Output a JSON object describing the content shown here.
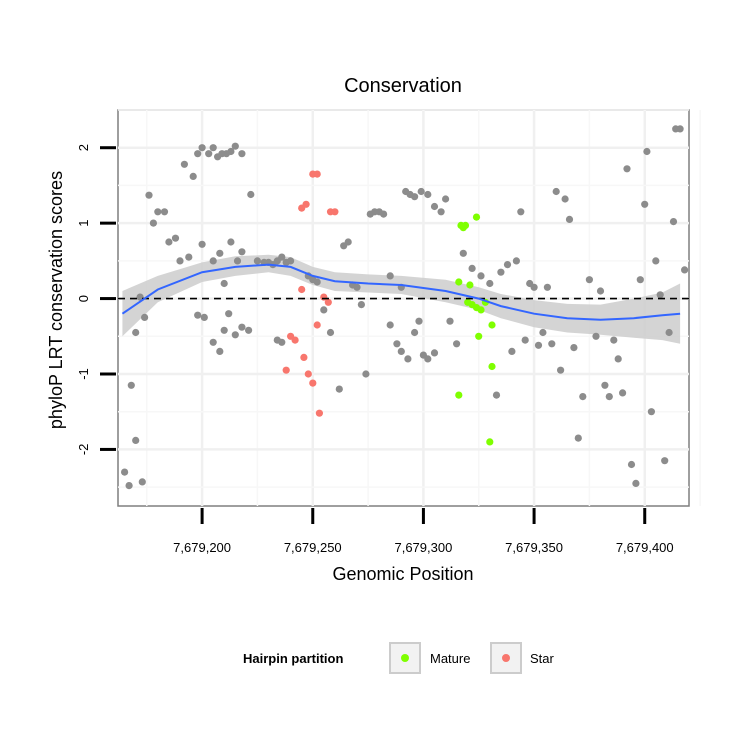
{
  "chart_data": {
    "type": "scatter",
    "title": "Conservation",
    "xlabel": "Genomic Position",
    "ylabel": "phyloP LRT conservation scores",
    "xlim": [
      7679162,
      7679420
    ],
    "ylim": [
      -2.75,
      2.5
    ],
    "x_ticks": [
      7679200,
      7679250,
      7679300,
      7679350,
      7679400
    ],
    "x_tick_labels": [
      "7,679,200",
      "7,679,250",
      "7,679,300",
      "7,679,350",
      "7,679,400"
    ],
    "y_ticks": [
      -2,
      -1,
      0,
      1,
      2
    ],
    "y_tick_labels": [
      "-2",
      "-1",
      "0",
      "1",
      "2"
    ],
    "grid": true,
    "reference_line": {
      "y": 0,
      "style": "dashed",
      "color": "#000000"
    },
    "legend": {
      "title": "Hairpin partition",
      "placement": "bottom",
      "entries": [
        {
          "label": "Mature",
          "color": "#7fff00"
        },
        {
          "label": "Star",
          "color": "#f8766d"
        }
      ]
    },
    "colors": {
      "other": "#8c8c8c",
      "mature": "#7fff00",
      "star": "#f8766d",
      "smooth": "#3366ff",
      "ribbon": "#cccccc"
    },
    "series": [
      {
        "group": "other",
        "points": [
          [
            7679165,
            -2.3
          ],
          [
            7679167,
            -2.48
          ],
          [
            7679170,
            -1.88
          ],
          [
            7679173,
            -2.43
          ],
          [
            7679168,
            -1.15
          ],
          [
            7679170,
            -0.45
          ],
          [
            7679172,
            0.02
          ],
          [
            7679174,
            -0.25
          ],
          [
            7679176,
            1.37
          ],
          [
            7679178,
            1.0
          ],
          [
            7679180,
            1.15
          ],
          [
            7679183,
            1.15
          ],
          [
            7679185,
            0.75
          ],
          [
            7679188,
            0.8
          ],
          [
            7679190,
            0.5
          ],
          [
            7679192,
            1.78
          ],
          [
            7679194,
            0.55
          ],
          [
            7679196,
            1.62
          ],
          [
            7679198,
            1.92
          ],
          [
            7679200,
            2.0
          ],
          [
            7679203,
            1.92
          ],
          [
            7679205,
            2.0
          ],
          [
            7679207,
            1.88
          ],
          [
            7679209,
            1.92
          ],
          [
            7679211,
            1.92
          ],
          [
            7679213,
            1.95
          ],
          [
            7679215,
            2.02
          ],
          [
            7679218,
            1.92
          ],
          [
            7679200,
            0.72
          ],
          [
            7679205,
            0.5
          ],
          [
            7679208,
            0.6
          ],
          [
            7679210,
            0.2
          ],
          [
            7679213,
            0.75
          ],
          [
            7679216,
            0.5
          ],
          [
            7679218,
            0.62
          ],
          [
            7679198,
            -0.22
          ],
          [
            7679201,
            -0.25
          ],
          [
            7679205,
            -0.58
          ],
          [
            7679208,
            -0.7
          ],
          [
            7679210,
            -0.42
          ],
          [
            7679212,
            -0.2
          ],
          [
            7679215,
            -0.48
          ],
          [
            7679218,
            -0.38
          ],
          [
            7679221,
            -0.42
          ],
          [
            7679222,
            1.38
          ],
          [
            7679225,
            0.5
          ],
          [
            7679228,
            0.48
          ],
          [
            7679230,
            0.48
          ],
          [
            7679232,
            0.45
          ],
          [
            7679234,
            0.5
          ],
          [
            7679236,
            0.55
          ],
          [
            7679238,
            0.48
          ],
          [
            7679240,
            0.5
          ],
          [
            7679234,
            -0.55
          ],
          [
            7679236,
            -0.58
          ],
          [
            7679248,
            0.3
          ],
          [
            7679250,
            0.25
          ],
          [
            7679252,
            0.22
          ],
          [
            7679255,
            -0.15
          ],
          [
            7679258,
            -0.45
          ],
          [
            7679262,
            -1.2
          ],
          [
            7679264,
            0.7
          ],
          [
            7679266,
            0.75
          ],
          [
            7679268,
            0.18
          ],
          [
            7679270,
            0.15
          ],
          [
            7679272,
            -0.08
          ],
          [
            7679274,
            -1.0
          ],
          [
            7679276,
            1.12
          ],
          [
            7679278,
            1.15
          ],
          [
            7679280,
            1.15
          ],
          [
            7679282,
            1.12
          ],
          [
            7679285,
            0.3
          ],
          [
            7679285,
            -0.35
          ],
          [
            7679290,
            0.15
          ],
          [
            7679292,
            1.42
          ],
          [
            7679294,
            1.38
          ],
          [
            7679296,
            1.35
          ],
          [
            7679299,
            1.42
          ],
          [
            7679288,
            -0.6
          ],
          [
            7679290,
            -0.7
          ],
          [
            7679293,
            -0.8
          ],
          [
            7679296,
            -0.45
          ],
          [
            7679298,
            -0.3
          ],
          [
            7679300,
            -0.75
          ],
          [
            7679302,
            -0.8
          ],
          [
            7679305,
            -0.72
          ],
          [
            7679302,
            1.38
          ],
          [
            7679305,
            1.22
          ],
          [
            7679308,
            1.15
          ],
          [
            7679310,
            1.32
          ],
          [
            7679312,
            -0.3
          ],
          [
            7679315,
            -0.6
          ],
          [
            7679318,
            0.6
          ],
          [
            7679322,
            0.4
          ],
          [
            7679326,
            0.3
          ],
          [
            7679330,
            0.2
          ],
          [
            7679333,
            -1.28
          ],
          [
            7679335,
            0.35
          ],
          [
            7679338,
            0.45
          ],
          [
            7679340,
            -0.7
          ],
          [
            7679342,
            0.5
          ],
          [
            7679344,
            1.15
          ],
          [
            7679346,
            -0.55
          ],
          [
            7679348,
            0.2
          ],
          [
            7679350,
            0.15
          ],
          [
            7679352,
            -0.62
          ],
          [
            7679354,
            -0.45
          ],
          [
            7679356,
            0.15
          ],
          [
            7679358,
            -0.6
          ],
          [
            7679360,
            1.42
          ],
          [
            7679362,
            -0.95
          ],
          [
            7679364,
            1.32
          ],
          [
            7679366,
            1.05
          ],
          [
            7679368,
            -0.65
          ],
          [
            7679370,
            -1.85
          ],
          [
            7679372,
            -1.3
          ],
          [
            7679375,
            0.25
          ],
          [
            7679378,
            -0.5
          ],
          [
            7679380,
            0.1
          ],
          [
            7679382,
            -1.15
          ],
          [
            7679384,
            -1.3
          ],
          [
            7679386,
            -0.55
          ],
          [
            7679388,
            -0.8
          ],
          [
            7679390,
            -1.25
          ],
          [
            7679392,
            1.72
          ],
          [
            7679394,
            -2.2
          ],
          [
            7679396,
            -2.45
          ],
          [
            7679398,
            0.25
          ],
          [
            7679400,
            1.25
          ],
          [
            7679401,
            1.95
          ],
          [
            7679403,
            -1.5
          ],
          [
            7679405,
            0.5
          ],
          [
            7679407,
            0.05
          ],
          [
            7679409,
            -2.15
          ],
          [
            7679411,
            -0.45
          ],
          [
            7679413,
            1.02
          ],
          [
            7679414,
            2.25
          ],
          [
            7679416,
            2.25
          ],
          [
            7679418,
            0.38
          ]
        ]
      },
      {
        "group": "mature",
        "points": [
          [
            7679316,
            0.22
          ],
          [
            7679317,
            0.97
          ],
          [
            7679318,
            0.94
          ],
          [
            7679319,
            0.97
          ],
          [
            7679321,
            0.18
          ],
          [
            7679324,
            1.08
          ],
          [
            7679320,
            -0.05
          ],
          [
            7679322,
            -0.08
          ],
          [
            7679324,
            -0.12
          ],
          [
            7679326,
            -0.15
          ],
          [
            7679328,
            -0.05
          ],
          [
            7679325,
            -0.5
          ],
          [
            7679331,
            -0.35
          ],
          [
            7679316,
            -1.28
          ],
          [
            7679331,
            -0.9
          ],
          [
            7679330,
            -1.9
          ]
        ]
      },
      {
        "group": "star",
        "points": [
          [
            7679250,
            1.65
          ],
          [
            7679252,
            1.65
          ],
          [
            7679245,
            1.2
          ],
          [
            7679247,
            1.25
          ],
          [
            7679258,
            1.15
          ],
          [
            7679260,
            1.15
          ],
          [
            7679240,
            -0.5
          ],
          [
            7679242,
            -0.55
          ],
          [
            7679246,
            -0.78
          ],
          [
            7679248,
            -1.0
          ],
          [
            7679250,
            -1.12
          ],
          [
            7679238,
            -0.95
          ],
          [
            7679253,
            -1.52
          ],
          [
            7679255,
            0.02
          ],
          [
            7679257,
            -0.05
          ],
          [
            7679252,
            -0.35
          ],
          [
            7679245,
            0.12
          ]
        ]
      }
    ],
    "smooth": {
      "x": [
        7679164,
        7679180,
        7679200,
        7679215,
        7679230,
        7679240,
        7679250,
        7679260,
        7679275,
        7679290,
        7679310,
        7679325,
        7679335,
        7679350,
        7679365,
        7679380,
        7679395,
        7679408,
        7679416
      ],
      "y": [
        -0.2,
        0.12,
        0.35,
        0.42,
        0.45,
        0.42,
        0.3,
        0.23,
        0.2,
        0.18,
        0.1,
        0.0,
        -0.1,
        -0.2,
        -0.26,
        -0.28,
        -0.26,
        -0.22,
        -0.2
      ],
      "lower": [
        -0.5,
        -0.05,
        0.22,
        0.3,
        0.35,
        0.3,
        0.18,
        0.1,
        0.08,
        0.06,
        -0.05,
        -0.15,
        -0.26,
        -0.38,
        -0.45,
        -0.48,
        -0.52,
        -0.55,
        -0.6
      ],
      "upper": [
        0.1,
        0.3,
        0.48,
        0.56,
        0.58,
        0.55,
        0.42,
        0.35,
        0.32,
        0.3,
        0.25,
        0.15,
        0.06,
        -0.02,
        -0.07,
        -0.08,
        0.0,
        0.08,
        0.2
      ]
    }
  }
}
